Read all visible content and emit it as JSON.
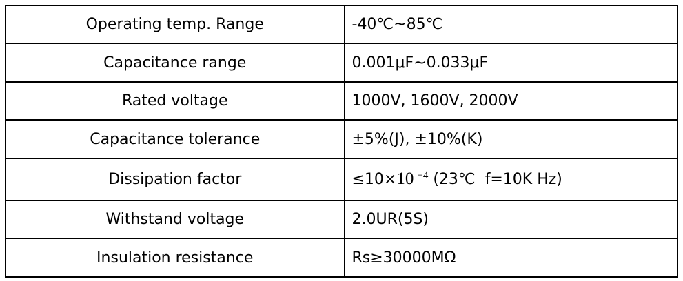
{
  "colors": {
    "background": "#ffffff",
    "border": "#000000",
    "text": "#000000"
  },
  "table": {
    "rows": [
      {
        "label": "Operating temp. Range",
        "value": "-40℃~85℃"
      },
      {
        "label": "Capacitance range",
        "value": "0.001μF~0.033μF"
      },
      {
        "label": "Rated voltage",
        "value": "1000V、1600V、2000V"
      },
      {
        "label": "Capacitance tolerance",
        "value": "±5%(J)、±10%(K)"
      },
      {
        "label": "Dissipation factor",
        "value": "≤10×10⁻⁴ (23℃  f=10K Hz)",
        "value_parts": {
          "prefix": "≤10×",
          "base": "10",
          "superscript": "−4",
          "suffix": " (23℃  f=10K Hz)"
        }
      },
      {
        "label": "Withstand voltage",
        "value": "2.0UR(5S)"
      },
      {
        "label": "Insulation resistance",
        "value": "Rs≥30000MΩ"
      }
    ]
  }
}
